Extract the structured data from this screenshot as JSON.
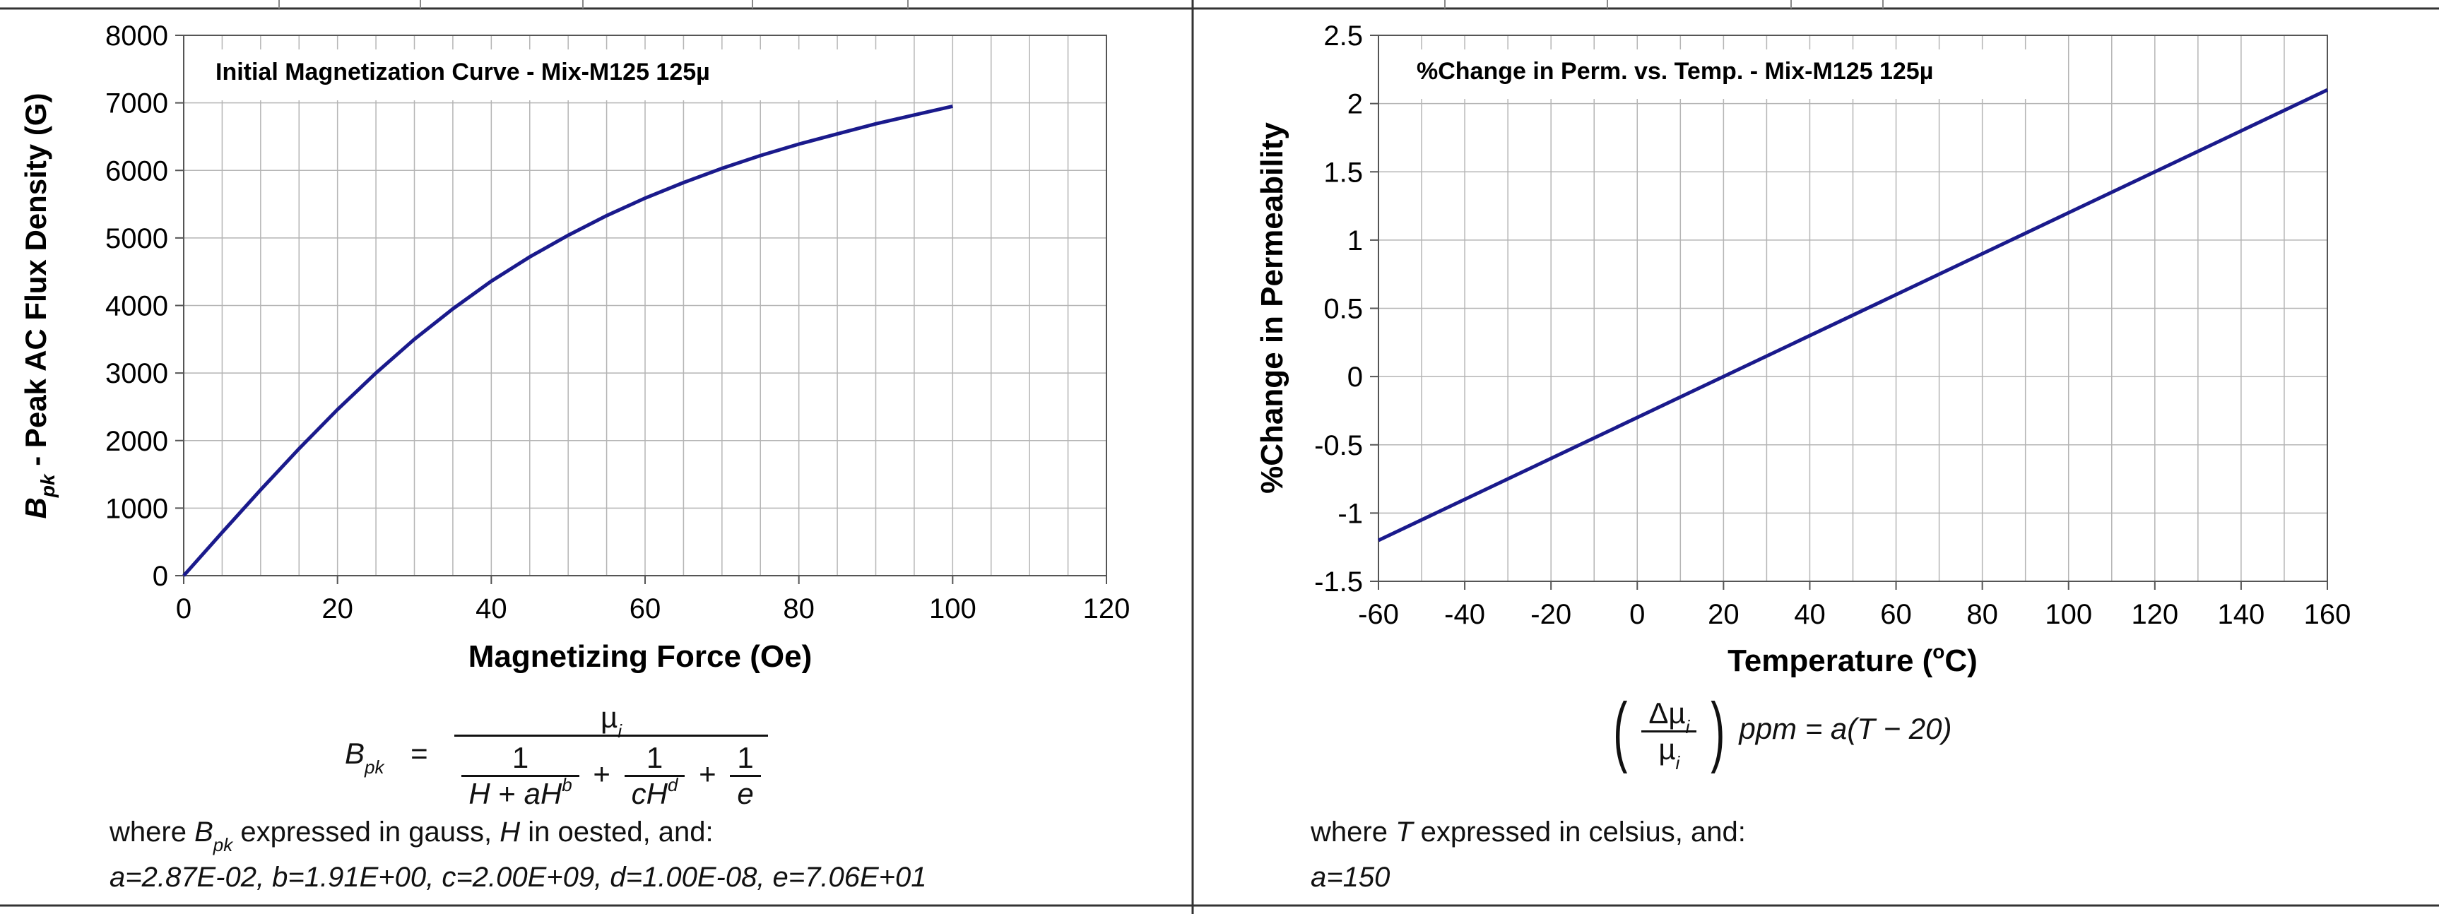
{
  "chart_data": [
    {
      "type": "line",
      "title": "Initial Magnetization Curve - Mix-M125  125µ",
      "xlabel": "Magnetizing Force (Oe)",
      "ylabel_symbol": "B",
      "ylabel_sub": "pk",
      "ylabel_rest": " - Peak AC Flux Density (G)",
      "xlim": [
        0,
        120
      ],
      "ylim": [
        0,
        8000
      ],
      "xticks": [
        0,
        20,
        40,
        60,
        80,
        100,
        120
      ],
      "yticks": [
        0,
        1000,
        2000,
        3000,
        4000,
        5000,
        6000,
        7000,
        8000
      ],
      "xtick_labels": [
        "0",
        "20",
        "40",
        "60",
        "80",
        "100",
        "120"
      ],
      "ytick_labels": [
        "0",
        "1000",
        "2000",
        "3000",
        "4000",
        "5000",
        "6000",
        "7000",
        "8000"
      ],
      "grid": true,
      "series": [
        {
          "color": "#1a1a8c",
          "x": [
            0,
            5,
            10,
            15,
            20,
            25,
            30,
            35,
            40,
            45,
            50,
            55,
            60,
            65,
            70,
            75,
            80,
            85,
            90,
            95,
            100
          ],
          "y": [
            0,
            640,
            1270,
            1880,
            2460,
            3000,
            3500,
            3950,
            4360,
            4720,
            5040,
            5330,
            5590,
            5820,
            6030,
            6220,
            6390,
            6540,
            6690,
            6820,
            6950
          ]
        }
      ]
    },
    {
      "type": "line",
      "title": "%Change in Perm. vs. Temp. - Mix-M125  125µ",
      "xlabel_text": "Temperature (",
      "xlabel_sup": "o",
      "xlabel_end": "C)",
      "ylabel": "%Change in Permeability",
      "xlim": [
        -60,
        160
      ],
      "ylim": [
        -1.5,
        2.5
      ],
      "xticks": [
        -60,
        -40,
        -20,
        0,
        20,
        40,
        60,
        80,
        100,
        120,
        140,
        160
      ],
      "yticks": [
        -1.5,
        -1,
        -0.5,
        0,
        0.5,
        1,
        1.5,
        2,
        2.5
      ],
      "xtick_labels": [
        "-60",
        "-40",
        "-20",
        "0",
        "20",
        "40",
        "60",
        "80",
        "100",
        "120",
        "140",
        "160"
      ],
      "ytick_labels": [
        "-1.5",
        "-1",
        "-0.5",
        "0",
        "0.5",
        "1",
        "1.5",
        "2",
        "2.5"
      ],
      "grid": true,
      "series": [
        {
          "color": "#1a1a8c",
          "x": [
            -60,
            160
          ],
          "y": [
            -1.2,
            2.1
          ]
        }
      ]
    }
  ],
  "left_formula": {
    "lhs_b": "B",
    "lhs_sub": "pk",
    "equals": "=",
    "numerator": "µ",
    "numerator_sub": "i",
    "one": "1",
    "h": "H",
    "plus": "+",
    "a": "a",
    "b": "b",
    "c": "c",
    "d": "d",
    "e": "e",
    "where_1": "where ",
    "where_b": "B",
    "where_sub": "pk",
    "where_2": " expressed in gauss, ",
    "where_h": "H",
    "where_3": " in oested, and:",
    "coefficients": "a=2.87E-02,  b=1.91E+00,  c=2.00E+09,  d=1.00E-08,  e=7.06E+01"
  },
  "right_formula": {
    "delta_mu": "Δµ",
    "mu": "µ",
    "sub_i": "i",
    "rest": "ppm = a(T − 20)",
    "where_1": "where ",
    "where_t": "T",
    "where_2": " expressed in celsius, and:",
    "coefficients": "a=150"
  }
}
